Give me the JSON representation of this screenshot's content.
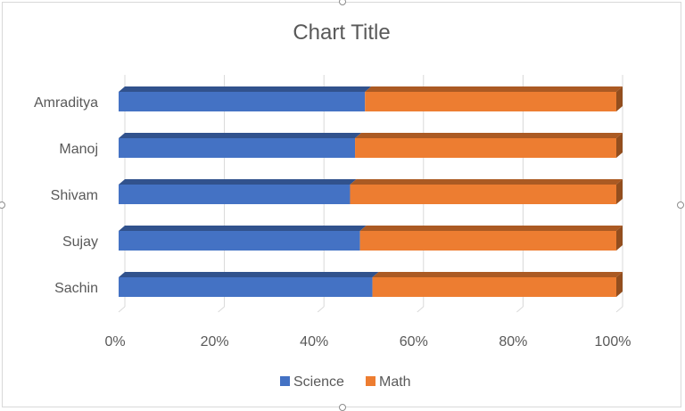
{
  "chart_data": {
    "type": "bar",
    "orientation": "horizontal",
    "stacked": "percent",
    "style": "3d",
    "title": "Chart Title",
    "categories": [
      "Sachin",
      "Sujay",
      "Shivam",
      "Manoj",
      "Amraditya"
    ],
    "series": [
      {
        "name": "Science",
        "color": "#4472c4",
        "values": [
          51,
          48.5,
          46.5,
          47.5,
          49.5
        ]
      },
      {
        "name": "Math",
        "color": "#ed7d31",
        "values": [
          49,
          51.5,
          53.5,
          52.5,
          50.5
        ]
      }
    ],
    "x_ticks": [
      "0%",
      "20%",
      "40%",
      "60%",
      "80%",
      "100%"
    ],
    "xlim": [
      0,
      100
    ],
    "grid": "vertical",
    "legend": "bottom"
  }
}
